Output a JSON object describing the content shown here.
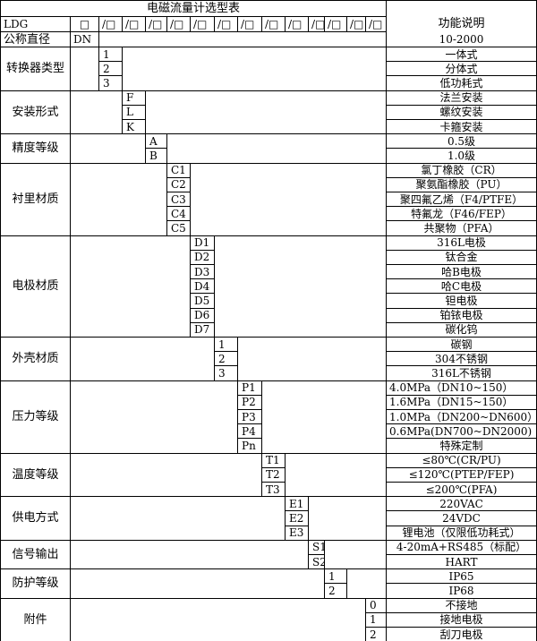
{
  "title": "电磁流量计选型表",
  "function_header": "功能说明",
  "model_row": {
    "prefix": "LDG",
    "first_box": "□",
    "slots": [
      "/□",
      "/□",
      "/□",
      "/□",
      "/□",
      "/□",
      "/□",
      "/□",
      "/□",
      "/□",
      "/□",
      "/□",
      "/□"
    ]
  },
  "nominal": {
    "label": "公称直径",
    "code": "DN",
    "desc": "10-2000"
  },
  "sections": [
    {
      "label": "转换器类型",
      "options": [
        {
          "code": "1",
          "desc": "一体式"
        },
        {
          "code": "2",
          "desc": "分体式"
        },
        {
          "code": "3",
          "desc": "低功耗式"
        }
      ]
    },
    {
      "label": "安装形式",
      "options": [
        {
          "code": "F",
          "desc": "法兰安装"
        },
        {
          "code": "L",
          "desc": "螺纹安装"
        },
        {
          "code": "K",
          "desc": "卡箍安装"
        }
      ]
    },
    {
      "label": "精度等级",
      "options": [
        {
          "code": "A",
          "desc": "0.5级"
        },
        {
          "code": "B",
          "desc": "1.0级"
        }
      ]
    },
    {
      "label": "衬里材质",
      "options": [
        {
          "code": "C1",
          "desc": "氯丁橡胶（CR）"
        },
        {
          "code": "C2",
          "desc": "聚氨酯橡胶（PU）"
        },
        {
          "code": "C3",
          "desc": "聚四氟乙烯（F4/PTFE）"
        },
        {
          "code": "C4",
          "desc": "特氟龙（F46/FEP）"
        },
        {
          "code": "C5",
          "desc": "共聚物（PFA）"
        }
      ]
    },
    {
      "label": "电极材质",
      "options": [
        {
          "code": "D1",
          "desc": "316L电极"
        },
        {
          "code": "D2",
          "desc": "钛合金"
        },
        {
          "code": "D3",
          "desc": "哈B电极"
        },
        {
          "code": "D4",
          "desc": "哈C电极"
        },
        {
          "code": "D5",
          "desc": "钽电极"
        },
        {
          "code": "D6",
          "desc": "铂铱电极"
        },
        {
          "code": "D7",
          "desc": "碳化钨"
        }
      ]
    },
    {
      "label": "外壳材质",
      "options": [
        {
          "code": "1",
          "desc": "碳钢"
        },
        {
          "code": "2",
          "desc": "304不锈钢"
        },
        {
          "code": "3",
          "desc": "316L不锈钢"
        }
      ]
    },
    {
      "label": "压力等级",
      "options": [
        {
          "code": "P1",
          "desc": "4.0MPa（DN10~150）"
        },
        {
          "code": "P2",
          "desc": "1.6MPa（DN15~150）"
        },
        {
          "code": "P3",
          "desc": "1.0MPa（DN200~DN600）"
        },
        {
          "code": "P4",
          "desc": "0.6MPa(DN700~DN2000)"
        },
        {
          "code": "Pn",
          "desc": "特殊定制"
        }
      ]
    },
    {
      "label": "温度等级",
      "options": [
        {
          "code": "T1",
          "desc": "≤80℃(CR/PU)"
        },
        {
          "code": "T2",
          "desc": "≤120℃(PTEP/FEP)"
        },
        {
          "code": "T3",
          "desc": "≤200℃(PFA)"
        }
      ]
    },
    {
      "label": "供电方式",
      "options": [
        {
          "code": "E1",
          "desc": "220VAC"
        },
        {
          "code": "E2",
          "desc": "24VDC"
        },
        {
          "code": "E3",
          "desc": "锂电池（仅限低功耗式）"
        }
      ]
    },
    {
      "label": "信号输出",
      "options": [
        {
          "code": "S1",
          "desc": "4-20mA+RS485（标配）"
        },
        {
          "code": "S2",
          "desc": "HART"
        }
      ]
    },
    {
      "label": "防护等级",
      "options": [
        {
          "code": "1",
          "desc": "IP65"
        },
        {
          "code": "2",
          "desc": "IP68"
        }
      ]
    },
    {
      "label": "附件",
      "options": [
        {
          "code": "0",
          "desc": "不接地"
        },
        {
          "code": "1",
          "desc": "接地电极"
        },
        {
          "code": "2",
          "desc": "刮刀电极"
        }
      ]
    }
  ]
}
